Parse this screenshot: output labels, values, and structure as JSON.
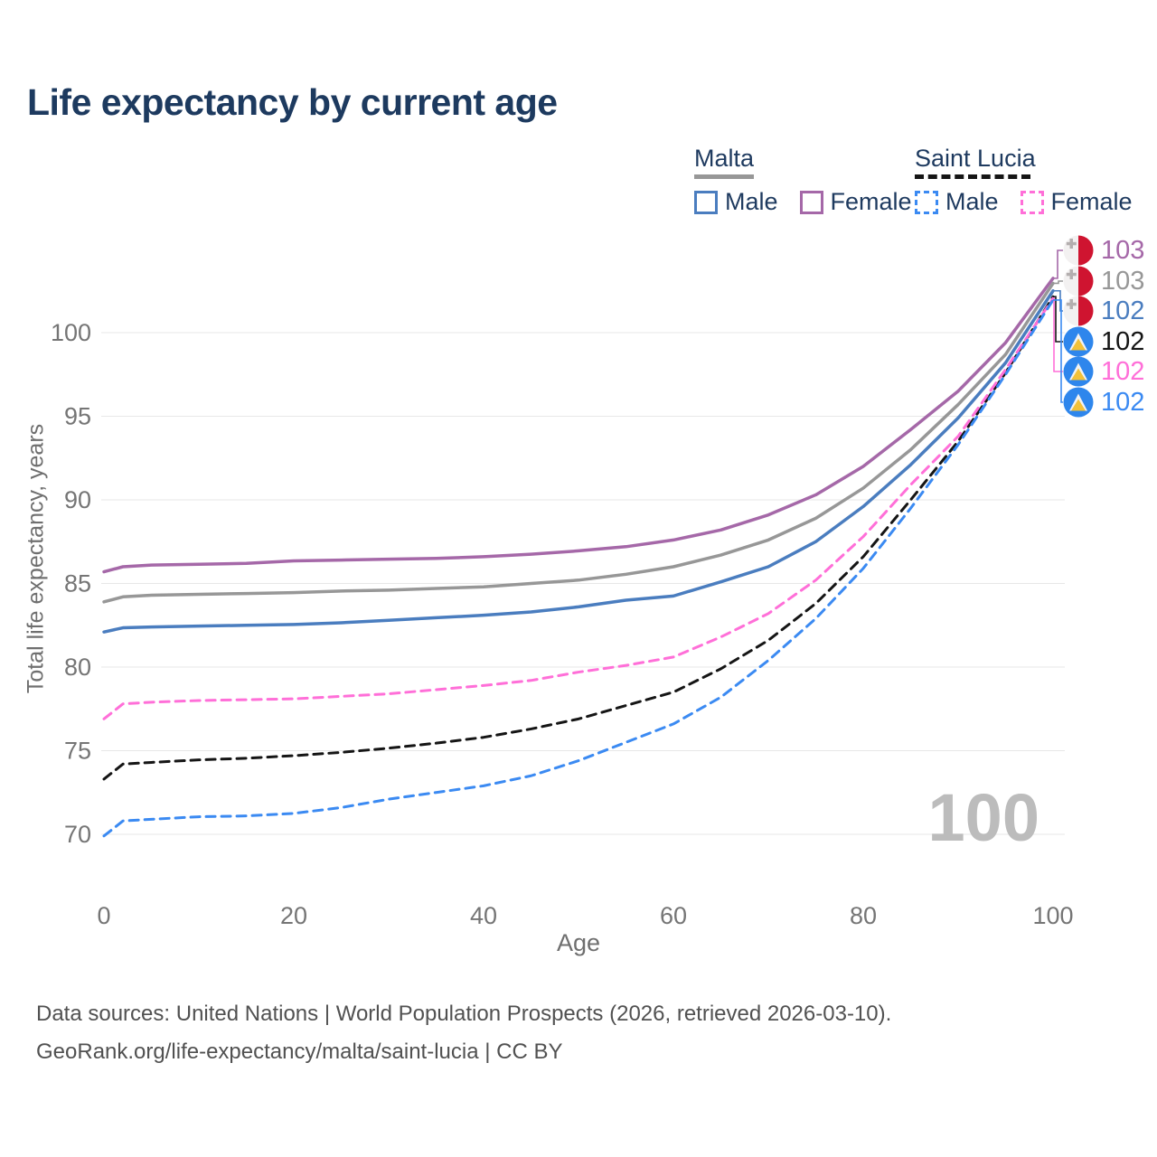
{
  "title": "Life expectancy by current age",
  "watermark_age": "100",
  "legend": {
    "malta": {
      "label": "Malta",
      "male_label": "Male",
      "female_label": "Female"
    },
    "saint_lucia": {
      "label": "Saint Lucia",
      "male_label": "Male",
      "female_label": "Female"
    }
  },
  "axes": {
    "y_title": "Total life expectancy, years",
    "x_title": "Age"
  },
  "footer": {
    "line1": "Data sources: United Nations | World Population Prospects (2026, retrieved 2026-03-10).",
    "line2": "GeoRank.org/life-expectancy/malta/saint-lucia | CC BY"
  },
  "colors": {
    "title_text": "#1d3a5f",
    "tick_text": "#757575",
    "gridline": "#e7e7e7",
    "watermark": "#bcbcbc",
    "malta_flag_red": "#cf1430",
    "saint_lucia_flag_blue": "#2e86ec"
  },
  "chart_data": {
    "type": "line",
    "title": "Life expectancy by current age",
    "xlabel": "Age",
    "ylabel": "Total life expectancy, years",
    "xlim": [
      0,
      100
    ],
    "ylim": [
      68.5,
      104.5
    ],
    "x_ticks": [
      0,
      20,
      40,
      60,
      80,
      100
    ],
    "y_ticks": [
      70,
      75,
      80,
      85,
      90,
      95,
      100
    ],
    "grid": "horizontal",
    "legend_position": "top-right",
    "x": [
      0,
      2,
      5,
      10,
      15,
      20,
      25,
      30,
      35,
      40,
      45,
      50,
      55,
      60,
      65,
      70,
      75,
      80,
      85,
      90,
      95,
      100
    ],
    "series": [
      {
        "name": "Malta Female",
        "country": "Malta",
        "sex": "Female",
        "style": "solid",
        "color": "#a568a8",
        "end_label": "103",
        "label_row": 0,
        "flag": "malta-flag-icon",
        "values": [
          85.7,
          86.0,
          86.1,
          86.15,
          86.2,
          86.35,
          86.4,
          86.45,
          86.5,
          86.6,
          86.75,
          86.95,
          87.2,
          87.6,
          88.2,
          89.1,
          90.3,
          92.0,
          94.2,
          96.5,
          99.4,
          103.25
        ]
      },
      {
        "name": "Malta Both sexes",
        "country": "Malta",
        "sex": "Both",
        "style": "solid",
        "color": "#979797",
        "end_label": "103",
        "label_row": 1,
        "flag": "malta-flag-icon",
        "values": [
          83.9,
          84.2,
          84.3,
          84.35,
          84.4,
          84.45,
          84.55,
          84.6,
          84.7,
          84.8,
          85.0,
          85.2,
          85.55,
          86.0,
          86.7,
          87.6,
          88.9,
          90.7,
          93.0,
          95.7,
          98.7,
          102.95
        ]
      },
      {
        "name": "Malta Male",
        "country": "Malta",
        "sex": "Male",
        "style": "solid",
        "color": "#4a7dbf",
        "end_label": "102",
        "label_row": 2,
        "flag": "malta-flag-icon",
        "values": [
          82.1,
          82.35,
          82.4,
          82.45,
          82.5,
          82.55,
          82.65,
          82.8,
          82.95,
          83.1,
          83.3,
          83.6,
          84.0,
          84.25,
          85.1,
          86.0,
          87.5,
          89.6,
          92.1,
          94.9,
          98.2,
          102.5
        ]
      },
      {
        "name": "Saint Lucia Both sexes",
        "country": "Saint Lucia",
        "sex": "Both",
        "style": "dashed",
        "color": "#151515",
        "end_label": "102",
        "label_row": 3,
        "flag": "saint-lucia-flag-icon",
        "values": [
          73.3,
          74.2,
          74.3,
          74.45,
          74.55,
          74.7,
          74.9,
          75.15,
          75.45,
          75.8,
          76.3,
          76.9,
          77.7,
          78.5,
          79.9,
          81.6,
          83.8,
          86.6,
          90.0,
          93.5,
          97.6,
          102.15
        ]
      },
      {
        "name": "Saint Lucia Female",
        "country": "Saint Lucia",
        "sex": "Female",
        "style": "dashed",
        "color": "#ff6fd8",
        "end_label": "102",
        "label_row": 4,
        "flag": "saint-lucia-flag-icon",
        "values": [
          76.9,
          77.8,
          77.9,
          78.0,
          78.05,
          78.1,
          78.25,
          78.4,
          78.65,
          78.9,
          79.2,
          79.7,
          80.1,
          80.6,
          81.8,
          83.2,
          85.2,
          87.8,
          90.9,
          93.8,
          97.8,
          102.05
        ]
      },
      {
        "name": "Saint Lucia Male",
        "country": "Saint Lucia",
        "sex": "Male",
        "style": "dashed",
        "color": "#3b8af2",
        "end_label": "102",
        "label_row": 5,
        "flag": "saint-lucia-flag-icon",
        "values": [
          69.9,
          70.8,
          70.9,
          71.05,
          71.1,
          71.25,
          71.6,
          72.1,
          72.5,
          72.9,
          73.5,
          74.4,
          75.5,
          76.6,
          78.2,
          80.4,
          82.9,
          85.9,
          89.5,
          93.3,
          97.5,
          101.95
        ]
      }
    ]
  }
}
